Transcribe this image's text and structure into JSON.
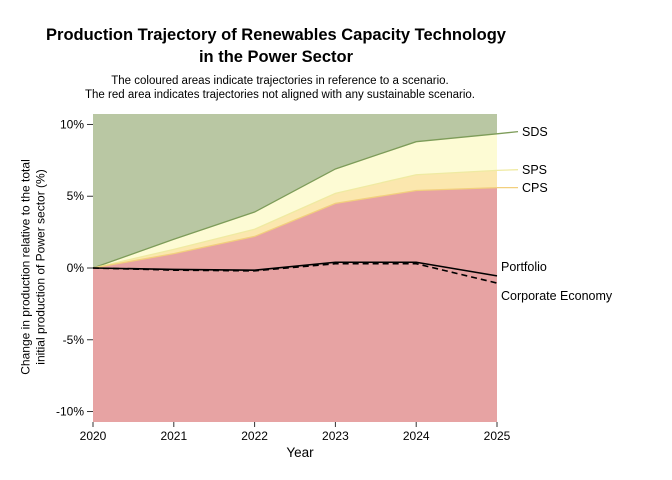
{
  "header": {
    "title_lines": [
      "Production Trajectory of Renewables Capacity Technology",
      "in the Power Sector"
    ],
    "subtitle_lines": [
      "The coloured areas indicate trajectories in reference to a scenario.",
      "The red area indicates trajectories not aligned with any sustainable scenario."
    ]
  },
  "y_axis": {
    "label_lines": [
      "Change in production relative to the total",
      "initial production of Power sector (%)"
    ]
  },
  "chart_data": {
    "type": "area",
    "title": "Production Trajectory of Renewables Capacity Technology in the Power Sector",
    "xlabel": "Year",
    "ylabel": "Change in production relative to the total initial production of Power sector (%)",
    "x": [
      2020,
      2021,
      2022,
      2023,
      2024,
      2025
    ],
    "x_tick_labels": [
      "2020",
      "2021",
      "2022",
      "2023",
      "2024",
      "2025"
    ],
    "y_ticks": [
      {
        "value": 10,
        "label": "10%"
      },
      {
        "value": 5,
        "label": "5%"
      },
      {
        "value": 0,
        "label": "0%"
      },
      {
        "value": -5,
        "label": "-5%"
      },
      {
        "value": -10,
        "label": "-10%"
      }
    ],
    "ylim": [
      -10.73,
      10.73
    ],
    "grid": false,
    "legend_position": "right-annotations",
    "boundaries": [
      {
        "name": "SDS",
        "values": [
          0,
          2.0,
          3.9,
          6.9,
          8.8,
          9.35
        ],
        "line_color": "#7d9c59"
      },
      {
        "name": "SPS",
        "values": [
          0,
          1.3,
          2.7,
          5.2,
          6.5,
          6.8
        ],
        "line_color": "#efeaa2"
      },
      {
        "name": "CPS",
        "values": [
          0,
          1.0,
          2.2,
          4.5,
          5.4,
          5.6
        ],
        "line_color": "#f2cf7d"
      }
    ],
    "bands": [
      {
        "name": "sds-zone",
        "upper": "top",
        "lower": "SDS",
        "fill": "#b9c7a3"
      },
      {
        "name": "sps-zone",
        "upper": "SDS",
        "lower": "SPS",
        "fill": "#fdfbd4"
      },
      {
        "name": "cps-zone",
        "upper": "SPS",
        "lower": "CPS",
        "fill": "#fbe7ae"
      },
      {
        "name": "not-aligned-zone",
        "upper": "CPS",
        "lower": "bottom",
        "fill": "#e7a3a3"
      }
    ],
    "series": [
      {
        "name": "Portfolio",
        "values": [
          0,
          -0.1,
          -0.15,
          0.4,
          0.4,
          -0.55
        ],
        "color": "#000000",
        "style": "solid"
      },
      {
        "name": "Corporate Economy",
        "values": [
          0,
          -0.15,
          -0.2,
          0.3,
          0.3,
          -1.05
        ],
        "color": "#000000",
        "style": "dashed"
      }
    ],
    "right_labels": [
      {
        "text": "SDS",
        "label_value": 9.5,
        "connect_value": 9.35,
        "color": "#7d9c59"
      },
      {
        "text": "SPS",
        "label_value": 6.85,
        "connect_value": 6.8,
        "color": "#efeaa2"
      },
      {
        "text": "CPS",
        "label_value": 5.6,
        "connect_value": 5.6,
        "color": "#f2cf7d"
      }
    ],
    "line_labels": [
      {
        "text": "Portfolio",
        "label_value": 0.1
      },
      {
        "text": "Corporate Economy",
        "label_value": -1.9
      }
    ]
  }
}
